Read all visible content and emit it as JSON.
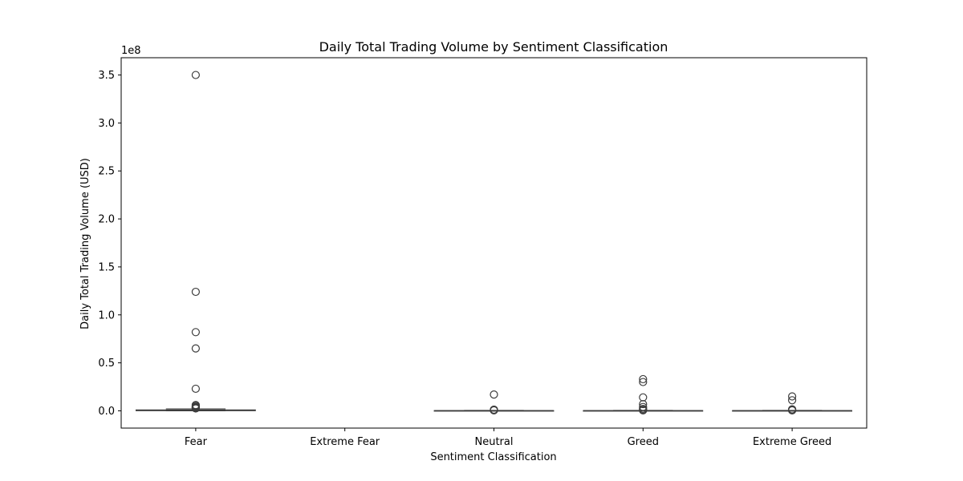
{
  "chart_data": {
    "type": "box",
    "title": "Daily Total Trading Volume by Sentiment Classification",
    "xlabel": "Sentiment Classification",
    "ylabel": "Daily Total Trading Volume (USD)",
    "y_offset_label": "1e8",
    "y_scale": 100000000,
    "ylim": [
      -0.18,
      3.68
    ],
    "yticks": [
      0.0,
      0.5,
      1.0,
      1.5,
      2.0,
      2.5,
      3.0,
      3.5
    ],
    "ytick_labels": [
      "0.0",
      "0.5",
      "1.0",
      "1.5",
      "2.0",
      "2.5",
      "3.0",
      "3.5"
    ],
    "grid": false,
    "categories": [
      "Fear",
      "Extreme Fear",
      "Neutral",
      "Greed",
      "Extreme Greed"
    ],
    "colors": {
      "box_line": "#3d3d3d",
      "outlier_edge": "#3d3d3d",
      "axes": "#000000"
    },
    "series": [
      {
        "category": "Fear",
        "whislo": 0.0,
        "q1": 0.002,
        "med": 0.004,
        "q3": 0.009,
        "whishi": 0.02,
        "outliers": [
          3.5,
          1.24,
          0.82,
          0.65,
          0.23,
          0.06,
          0.05,
          0.04,
          0.035,
          0.03,
          0.025
        ]
      },
      {
        "category": "Extreme Fear",
        "whislo": null,
        "q1": null,
        "med": null,
        "q3": null,
        "whishi": null,
        "outliers": []
      },
      {
        "category": "Neutral",
        "whislo": 0.0,
        "q1": 0.0005,
        "med": 0.001,
        "q3": 0.002,
        "whishi": 0.004,
        "outliers": [
          0.17,
          0.012,
          0.008,
          0.005
        ]
      },
      {
        "category": "Greed",
        "whislo": 0.0,
        "q1": 0.0005,
        "med": 0.001,
        "q3": 0.002,
        "whishi": 0.004,
        "outliers": [
          0.33,
          0.3,
          0.14,
          0.07,
          0.04,
          0.02,
          0.01,
          0.005
        ]
      },
      {
        "category": "Extreme Greed",
        "whislo": 0.0,
        "q1": 0.0005,
        "med": 0.001,
        "q3": 0.002,
        "whishi": 0.004,
        "outliers": [
          0.15,
          0.11,
          0.015,
          0.008,
          0.005
        ]
      }
    ]
  }
}
